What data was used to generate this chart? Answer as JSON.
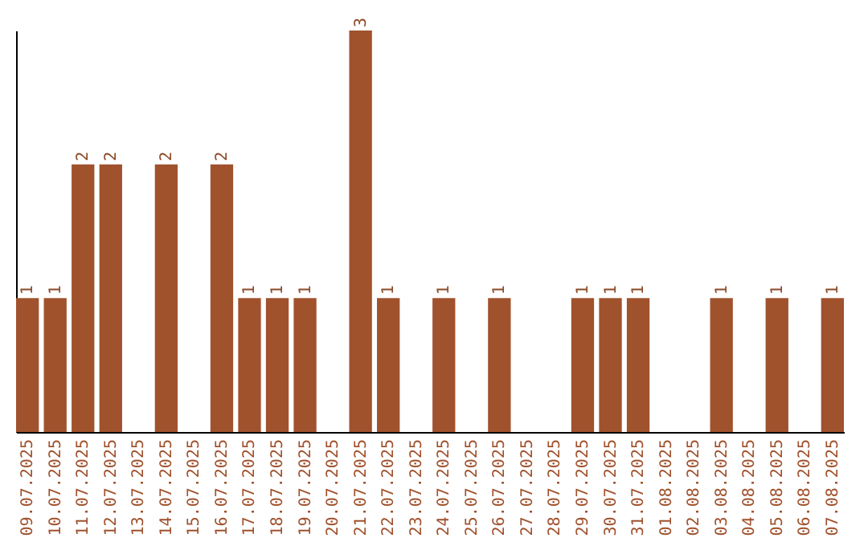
{
  "chart_data": {
    "type": "bar",
    "categories": [
      "09.07.2025",
      "10.07.2025",
      "11.07.2025",
      "12.07.2025",
      "13.07.2025",
      "14.07.2025",
      "15.07.2025",
      "16.07.2025",
      "17.07.2025",
      "18.07.2025",
      "19.07.2025",
      "20.07.2025",
      "21.07.2025",
      "22.07.2025",
      "23.07.2025",
      "24.07.2025",
      "25.07.2025",
      "26.07.2025",
      "27.07.2025",
      "28.07.2025",
      "29.07.2025",
      "30.07.2025",
      "31.07.2025",
      "01.08.2025",
      "02.08.2025",
      "03.08.2025",
      "04.08.2025",
      "05.08.2025",
      "06.08.2025",
      "07.08.2025"
    ],
    "values": [
      1,
      1,
      2,
      2,
      0,
      2,
      0,
      2,
      1,
      1,
      1,
      0,
      3,
      1,
      0,
      1,
      0,
      1,
      0,
      0,
      1,
      1,
      1,
      0,
      0,
      1,
      0,
      1,
      0,
      1
    ],
    "value_labels": [
      "1",
      "1",
      "2",
      "2",
      null,
      "2",
      null,
      "2",
      "1",
      "1",
      "1",
      null,
      "3",
      "1",
      null,
      "1",
      null,
      "1",
      null,
      null,
      "1",
      "1",
      "1",
      null,
      null,
      "1",
      null,
      "1",
      null,
      "1"
    ],
    "color": "#a0522d",
    "tick_labels": "x"
  }
}
